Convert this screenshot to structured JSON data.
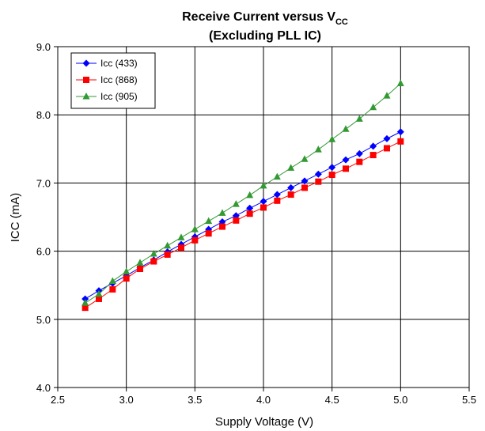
{
  "chart_data": {
    "type": "line",
    "title_line1_main": "Receive Current versus V",
    "title_line1_sub": "CC",
    "title_line2": "(Excluding PLL IC)",
    "xlabel": "Supply Voltage (V)",
    "ylabel": "ICC (mA)",
    "xlim": [
      2.5,
      5.5
    ],
    "ylim": [
      4.0,
      9.0
    ],
    "x_ticks": [
      "2.5",
      "3.0",
      "3.5",
      "4.0",
      "4.5",
      "5.0",
      "5.5"
    ],
    "y_ticks": [
      "4.0",
      "5.0",
      "6.0",
      "7.0",
      "8.0",
      "9.0"
    ],
    "grid": true,
    "legend_position": "top-left",
    "x": [
      2.7,
      2.8,
      2.9,
      3.0,
      3.1,
      3.2,
      3.3,
      3.4,
      3.5,
      3.6,
      3.7,
      3.8,
      3.9,
      4.0,
      4.1,
      4.2,
      4.3,
      4.4,
      4.5,
      4.6,
      4.7,
      4.8,
      4.9,
      5.0
    ],
    "series": [
      {
        "name": "Icc (433)",
        "color": "#0000ff",
        "marker": "diamond",
        "values": [
          5.3,
          5.42,
          5.53,
          5.64,
          5.76,
          5.87,
          5.99,
          6.1,
          6.21,
          6.32,
          6.43,
          6.52,
          6.63,
          6.73,
          6.83,
          6.93,
          7.03,
          7.13,
          7.23,
          7.34,
          7.43,
          7.54,
          7.65,
          7.75
        ]
      },
      {
        "name": "Icc (868)",
        "color": "#ff0000",
        "marker": "square",
        "values": [
          5.17,
          5.3,
          5.44,
          5.6,
          5.74,
          5.85,
          5.95,
          6.05,
          6.16,
          6.26,
          6.36,
          6.45,
          6.55,
          6.64,
          6.74,
          6.83,
          6.93,
          7.02,
          7.12,
          7.21,
          7.31,
          7.41,
          7.51,
          7.61
        ]
      },
      {
        "name": "Icc (905)",
        "color": "#339933",
        "marker": "triangle",
        "values": [
          5.24,
          5.37,
          5.56,
          5.7,
          5.83,
          5.96,
          6.08,
          6.2,
          6.32,
          6.44,
          6.56,
          6.69,
          6.82,
          6.96,
          7.09,
          7.22,
          7.35,
          7.49,
          7.64,
          7.79,
          7.94,
          8.11,
          8.28,
          8.46
        ]
      }
    ]
  }
}
